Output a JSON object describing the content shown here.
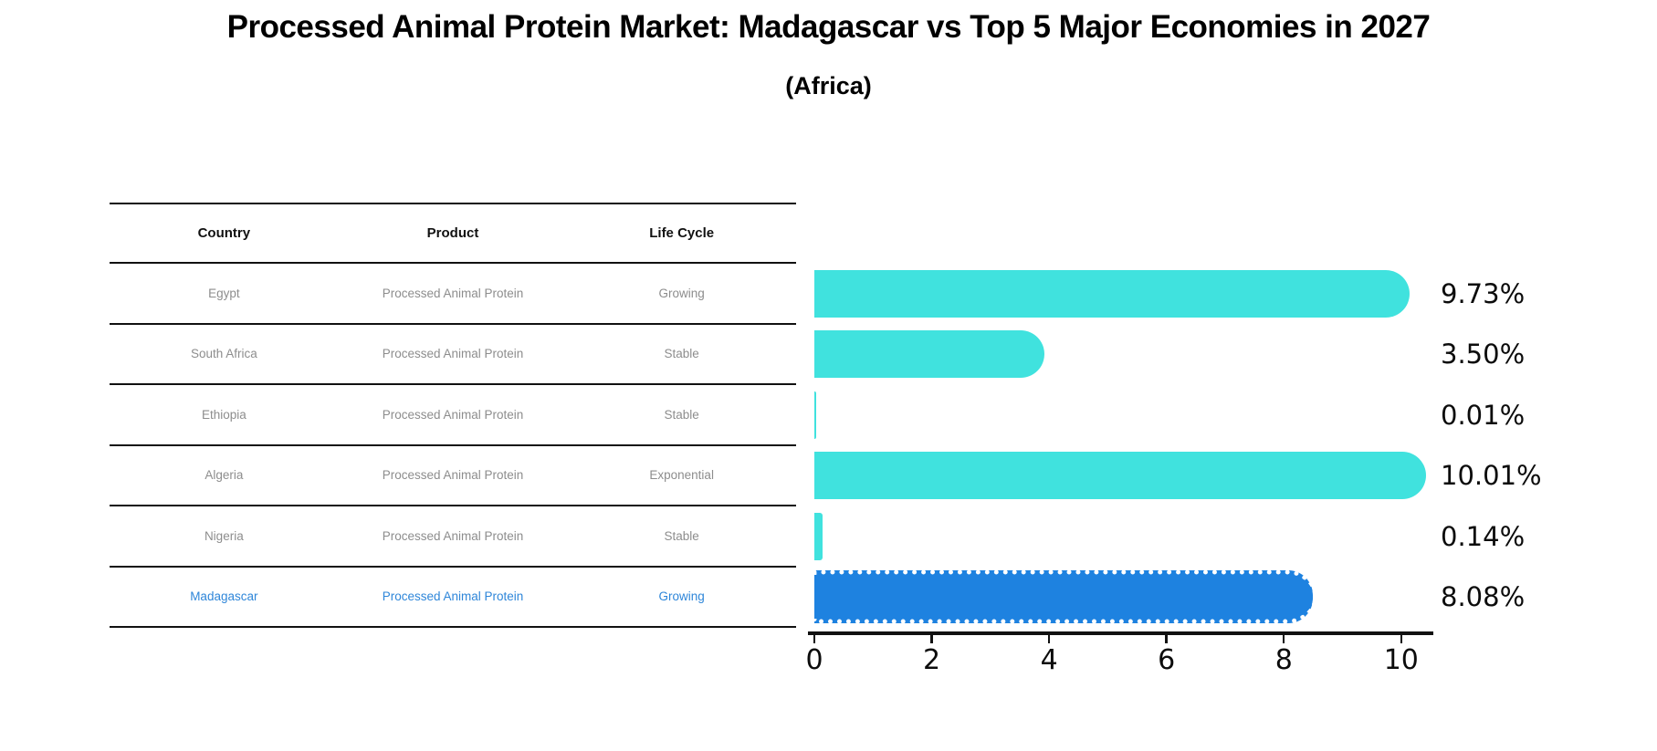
{
  "title": "Processed Animal Protein Market: Madagascar vs Top 5 Major Economies in 2027",
  "subtitle": "(Africa)",
  "table": {
    "headers": [
      "Country",
      "Product",
      "Life Cycle"
    ],
    "rows": [
      {
        "country": "Egypt",
        "product": "Processed Animal Protein",
        "life_cycle": "Growing",
        "highlight": false
      },
      {
        "country": "South Africa",
        "product": "Processed Animal Protein",
        "life_cycle": "Stable",
        "highlight": false
      },
      {
        "country": "Ethiopia",
        "product": "Processed Animal Protein",
        "life_cycle": "Stable",
        "highlight": false
      },
      {
        "country": "Algeria",
        "product": "Processed Animal Protein",
        "life_cycle": "Exponential",
        "highlight": false
      },
      {
        "country": "Nigeria",
        "product": "Processed Animal Protein",
        "life_cycle": "Stable",
        "highlight": false
      },
      {
        "country": "Madagascar",
        "product": "Processed Animal Protein",
        "life_cycle": "Growing",
        "highlight": true
      }
    ]
  },
  "chart_data": {
    "type": "bar",
    "orientation": "horizontal",
    "title": "Processed Animal Protein Market: Madagascar vs Top 5 Major Economies in 2027",
    "subtitle": "(Africa)",
    "categories": [
      "Egypt",
      "South Africa",
      "Ethiopia",
      "Algeria",
      "Nigeria",
      "Madagascar"
    ],
    "values": [
      9.73,
      3.5,
      0.01,
      10.01,
      0.14,
      8.08
    ],
    "value_labels": [
      "9.73%",
      "3.50%",
      "0.01%",
      "10.01%",
      "0.14%",
      "8.08%"
    ],
    "x_ticks": [
      "0",
      "2",
      "4",
      "6",
      "8",
      "10"
    ],
    "xlim": [
      0,
      10.5
    ],
    "grid": false,
    "legend": false,
    "bar_color": "#40E2DE",
    "highlight_color": "#1E82E0",
    "highlight_index": 5,
    "highlight_text_color": "#2e86d9",
    "label_color": "#0c0c0c"
  }
}
